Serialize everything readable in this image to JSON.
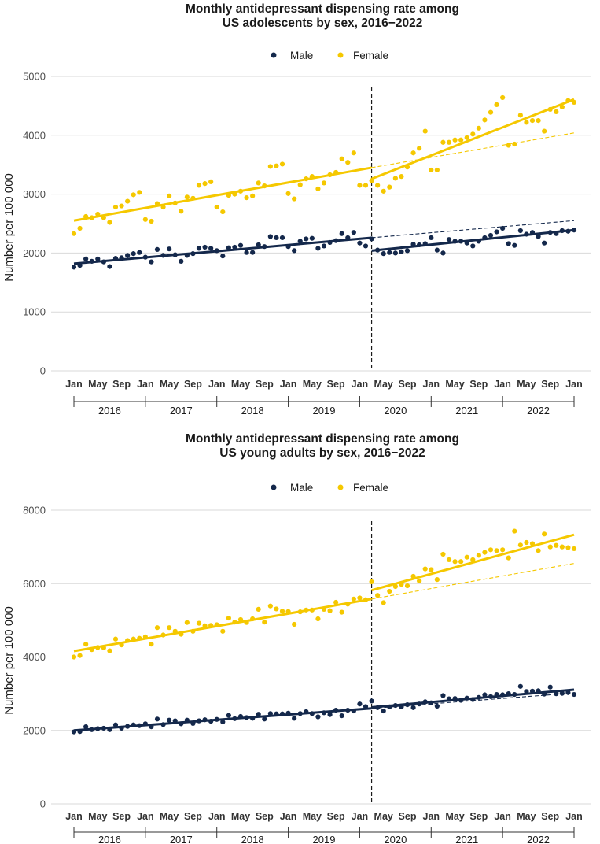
{
  "chart_data": [
    {
      "type": "scatter",
      "title_line1": "Monthly antidepressant dispensing rate among",
      "title_line2": "US adolescents by sex, 2016−2022",
      "ylabel": "Number per 100 000",
      "xlabel": "",
      "ylim": [
        0,
        5000
      ],
      "yticks": [
        0,
        1000,
        2000,
        3000,
        4000,
        5000
      ],
      "legend_position": "top-center",
      "grid": true,
      "x_tick_labels": [
        "Jan",
        "May",
        "Sep",
        "Jan",
        "May",
        "Sep",
        "Jan",
        "May",
        "Sep",
        "Jan",
        "May",
        "Sep",
        "Jan",
        "May",
        "Sep",
        "Jan",
        "May",
        "Sep",
        "Jan",
        "May",
        "Sep",
        "Jan"
      ],
      "x_tick_months": [
        0,
        4,
        8,
        12,
        16,
        20,
        24,
        28,
        32,
        36,
        40,
        44,
        48,
        52,
        56,
        60,
        64,
        68,
        72,
        76,
        80,
        84
      ],
      "years": [
        "2016",
        "2017",
        "2018",
        "2019",
        "2020",
        "2021",
        "2022"
      ],
      "breakpoint_month": 50,
      "series": [
        {
          "name": "Male",
          "color": "#14284b",
          "values": [
            1760,
            1790,
            1900,
            1860,
            1900,
            1850,
            1770,
            1910,
            1920,
            1960,
            1990,
            2010,
            1930,
            1850,
            2060,
            1960,
            2070,
            1970,
            1860,
            1960,
            1990,
            2080,
            2100,
            2080,
            2040,
            1950,
            2090,
            2100,
            2130,
            2010,
            2010,
            2140,
            2110,
            2280,
            2260,
            2260,
            2110,
            2040,
            2200,
            2240,
            2250,
            2080,
            2120,
            2180,
            2210,
            2330,
            2260,
            2350,
            2170,
            2120,
            2240,
            2050,
            1990,
            2010,
            2000,
            2020,
            2040,
            2150,
            2140,
            2160,
            2260,
            2050,
            2000,
            2230,
            2200,
            2200,
            2170,
            2120,
            2200,
            2260,
            2300,
            2360,
            2420,
            2160,
            2130,
            2380,
            2320,
            2350,
            2280,
            2170,
            2350,
            2330,
            2380,
            2370,
            2390
          ],
          "fit_pre": [
            1820,
            2260
          ],
          "fit_post": [
            2040,
            2390
          ],
          "counterfactual_end": 2550
        },
        {
          "name": "Female",
          "color": "#f5c800",
          "values": [
            2330,
            2420,
            2620,
            2600,
            2660,
            2600,
            2520,
            2780,
            2800,
            2880,
            2990,
            3030,
            2570,
            2540,
            2840,
            2780,
            2970,
            2850,
            2710,
            2950,
            2930,
            3150,
            3180,
            3210,
            2780,
            2700,
            2980,
            3000,
            3050,
            2940,
            2970,
            3190,
            3140,
            3470,
            3480,
            3510,
            3010,
            2920,
            3160,
            3260,
            3300,
            3090,
            3190,
            3330,
            3370,
            3600,
            3540,
            3700,
            3150,
            3150,
            3230,
            3150,
            3050,
            3120,
            3270,
            3300,
            3460,
            3700,
            3780,
            4070,
            3410,
            3410,
            3880,
            3880,
            3920,
            3920,
            3960,
            4020,
            4120,
            4260,
            4390,
            4520,
            4640,
            3830,
            3850,
            4340,
            4220,
            4250,
            4250,
            4070,
            4440,
            4400,
            4480,
            4590,
            4560
          ],
          "fit_pre": [
            2550,
            3450
          ],
          "fit_post": [
            3260,
            4610
          ],
          "counterfactual_end": 4040
        }
      ]
    },
    {
      "type": "scatter",
      "title_line1": "Monthly antidepressant dispensing rate among",
      "title_line2": "US young adults by sex, 2016−2022",
      "ylabel": "Number per 100 000",
      "xlabel": "",
      "ylim": [
        0,
        8000
      ],
      "yticks": [
        0,
        2000,
        4000,
        6000,
        8000
      ],
      "legend_position": "top-center",
      "grid": true,
      "x_tick_labels": [
        "Jan",
        "May",
        "Sep",
        "Jan",
        "May",
        "Sep",
        "Jan",
        "May",
        "Sep",
        "Jan",
        "May",
        "Sep",
        "Jan",
        "May",
        "Sep",
        "Jan",
        "May",
        "Sep",
        "Jan",
        "May",
        "Sep",
        "Jan"
      ],
      "x_tick_months": [
        0,
        4,
        8,
        12,
        16,
        20,
        24,
        28,
        32,
        36,
        40,
        44,
        48,
        52,
        56,
        60,
        64,
        68,
        72,
        76,
        80,
        84
      ],
      "years": [
        "2016",
        "2017",
        "2018",
        "2019",
        "2020",
        "2021",
        "2022"
      ],
      "breakpoint_month": 50,
      "series": [
        {
          "name": "Male",
          "color": "#14284b",
          "values": [
            1960,
            1970,
            2100,
            2020,
            2050,
            2060,
            2020,
            2150,
            2060,
            2110,
            2150,
            2130,
            2180,
            2100,
            2310,
            2160,
            2280,
            2260,
            2180,
            2280,
            2190,
            2260,
            2290,
            2250,
            2300,
            2230,
            2410,
            2320,
            2380,
            2350,
            2330,
            2440,
            2310,
            2460,
            2450,
            2450,
            2470,
            2330,
            2460,
            2510,
            2460,
            2370,
            2480,
            2430,
            2550,
            2400,
            2550,
            2530,
            2720,
            2650,
            2800,
            2620,
            2530,
            2640,
            2680,
            2640,
            2700,
            2620,
            2720,
            2780,
            2750,
            2660,
            2950,
            2860,
            2870,
            2820,
            2880,
            2840,
            2900,
            2970,
            2920,
            2980,
            2970,
            3000,
            2980,
            3200,
            3060,
            3070,
            3080,
            2990,
            3180,
            3000,
            3010,
            3030,
            2980
          ],
          "fit_pre": [
            2000,
            2600
          ],
          "fit_post": [
            2630,
            3110
          ],
          "counterfactual_end": 3020
        },
        {
          "name": "Female",
          "color": "#f5c800",
          "values": [
            4000,
            4040,
            4350,
            4200,
            4260,
            4250,
            4170,
            4490,
            4330,
            4450,
            4490,
            4510,
            4550,
            4350,
            4800,
            4600,
            4800,
            4700,
            4620,
            4940,
            4700,
            4920,
            4850,
            4860,
            4880,
            4700,
            5060,
            4950,
            5020,
            4940,
            5040,
            5300,
            4950,
            5390,
            5310,
            5250,
            5240,
            4890,
            5230,
            5280,
            5280,
            5040,
            5300,
            5260,
            5490,
            5220,
            5440,
            5580,
            5610,
            5560,
            6050,
            5680,
            5480,
            5790,
            5920,
            5980,
            5940,
            6200,
            6070,
            6400,
            6380,
            6110,
            6800,
            6650,
            6600,
            6600,
            6720,
            6650,
            6770,
            6850,
            6920,
            6900,
            6920,
            6700,
            7430,
            7050,
            7120,
            7090,
            6900,
            7350,
            7000,
            7040,
            7000,
            6980,
            6950
          ],
          "fit_pre": [
            4160,
            5580
          ],
          "fit_post": [
            5820,
            7330
          ],
          "counterfactual_end": 6550
        }
      ]
    }
  ]
}
